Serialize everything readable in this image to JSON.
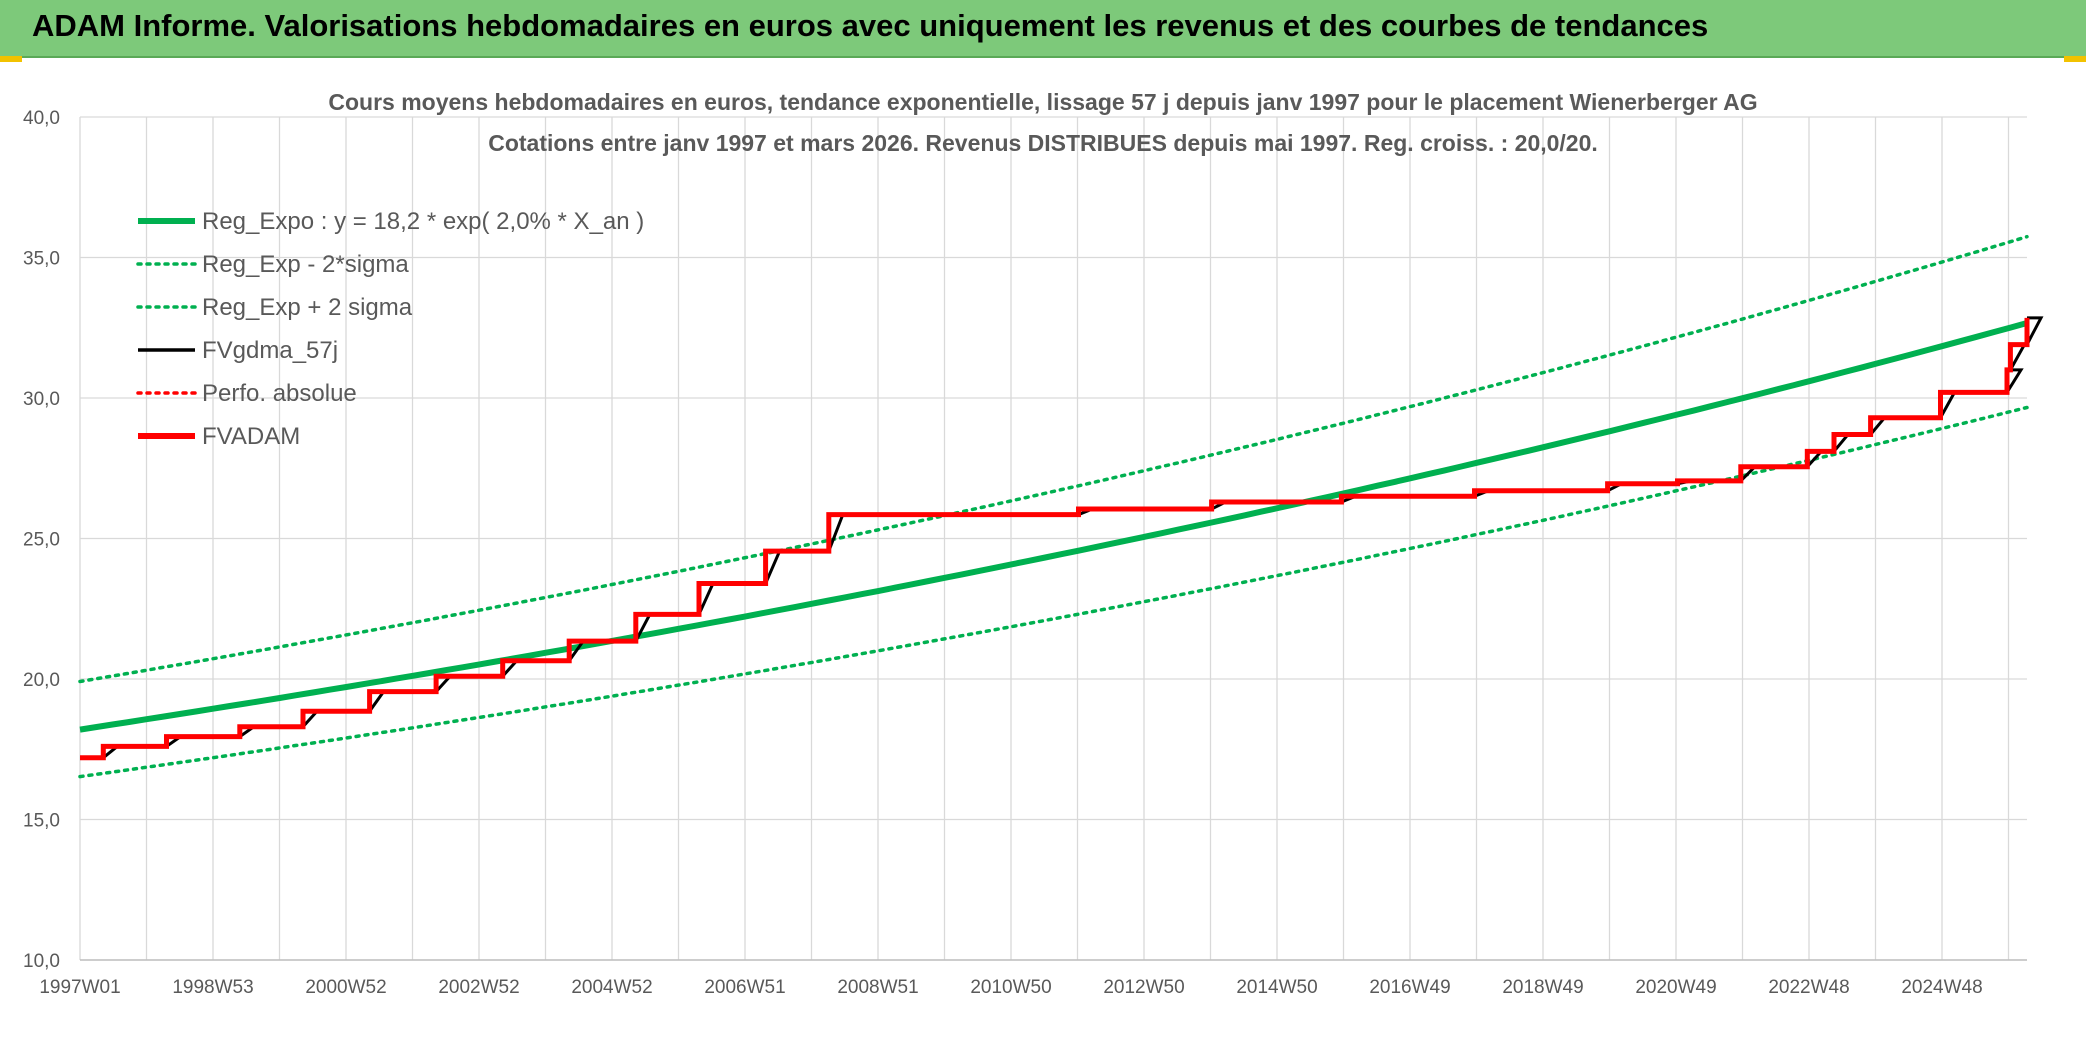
{
  "banner": {
    "title": "ADAM Informe. Valorisations hebdomadaires en euros avec uniquement les revenus et des courbes de tendances"
  },
  "colors": {
    "banner_bg": "#7dc97a",
    "trend_green": "#00b050",
    "fvgdma_black": "#000000",
    "fvadam_red": "#ff0000",
    "grid": "#d9d9d9",
    "text": "#595959"
  },
  "chart_data": {
    "type": "line",
    "title_line1": "Cours moyens hebdomadaires en euros, tendance exponentielle, lissage 57 j depuis janv 1997 pour le placement Wienerberger AG",
    "title_line2": "Cotations entre janv 1997 et mars 2026. Revenus DISTRIBUES depuis mai 1997. Reg. croiss. : 20,0/20.",
    "ylim": [
      10,
      40
    ],
    "y_ticks": [
      "10,0",
      "15,0",
      "20,0",
      "25,0",
      "30,0",
      "35,0",
      "40,0"
    ],
    "x_tick_labels": [
      "1997W01",
      "1998W53",
      "2000W52",
      "2002W52",
      "2004W52",
      "2006W51",
      "2008W51",
      "2010W50",
      "2012W50",
      "2014W50",
      "2016W49",
      "2018W49",
      "2020W49",
      "2022W48",
      "2024W48"
    ],
    "x_range_years": [
      1997.0,
      2026.25
    ],
    "grid": true,
    "legend_position": "top-left",
    "legend": [
      {
        "label": "Reg_Expo : y = 18,2 * exp( 2,0% *  X_an )",
        "color": "#00b050",
        "style": "solid-thick"
      },
      {
        "label": "Reg_Exp - 2*sigma",
        "color": "#00b050",
        "style": "dotted"
      },
      {
        "label": "Reg_Exp + 2 sigma",
        "color": "#00b050",
        "style": "dotted"
      },
      {
        "label": "FVgdma_57j",
        "color": "#000000",
        "style": "solid"
      },
      {
        "label": "Perfo. absolue",
        "color": "#ff0000",
        "style": "dotted"
      },
      {
        "label": "FVADAM",
        "color": "#ff0000",
        "style": "solid-thick"
      }
    ],
    "regression": {
      "a": 18.2,
      "rate": 0.02,
      "lower_factor": 0.908,
      "upper_factor": 1.094
    },
    "fvadam_steps": [
      [
        1997.0,
        17.2
      ],
      [
        1997.35,
        17.6
      ],
      [
        1998.3,
        17.95
      ],
      [
        1999.4,
        18.3
      ],
      [
        2000.35,
        18.85
      ],
      [
        2001.35,
        19.55
      ],
      [
        2002.35,
        20.1
      ],
      [
        2003.35,
        20.65
      ],
      [
        2004.35,
        21.35
      ],
      [
        2005.35,
        22.3
      ],
      [
        2006.3,
        23.4
      ],
      [
        2007.3,
        24.55
      ],
      [
        2008.25,
        25.85
      ],
      [
        2012.0,
        26.05
      ],
      [
        2014.0,
        26.3
      ],
      [
        2015.95,
        26.5
      ],
      [
        2017.95,
        26.7
      ],
      [
        2019.95,
        26.95
      ],
      [
        2021.0,
        27.05
      ],
      [
        2021.95,
        27.55
      ],
      [
        2022.95,
        28.1
      ],
      [
        2023.35,
        28.7
      ],
      [
        2023.9,
        29.3
      ],
      [
        2024.95,
        30.2
      ],
      [
        2025.95,
        31.0
      ],
      [
        2026.0,
        31.9
      ],
      [
        2026.25,
        32.85
      ]
    ],
    "series": [
      {
        "name": "Reg_Expo : y = 18,2 * exp( 2,0% *  X_an )",
        "start_value": 18.2,
        "end_value": 33.0
      },
      {
        "name": "Reg_Exp - 2*sigma",
        "start_value": 16.5,
        "end_value": 30.1
      },
      {
        "name": "Reg_Exp + 2 sigma",
        "start_value": 19.9,
        "end_value": 36.2
      },
      {
        "name": "FVgdma_57j",
        "start_value": 17.2,
        "end_value": 32.85
      },
      {
        "name": "Perfo. absolue",
        "start_value": 17.2,
        "end_value": 32.85
      },
      {
        "name": "FVADAM",
        "start_value": 17.2,
        "end_value": 32.85
      }
    ]
  }
}
